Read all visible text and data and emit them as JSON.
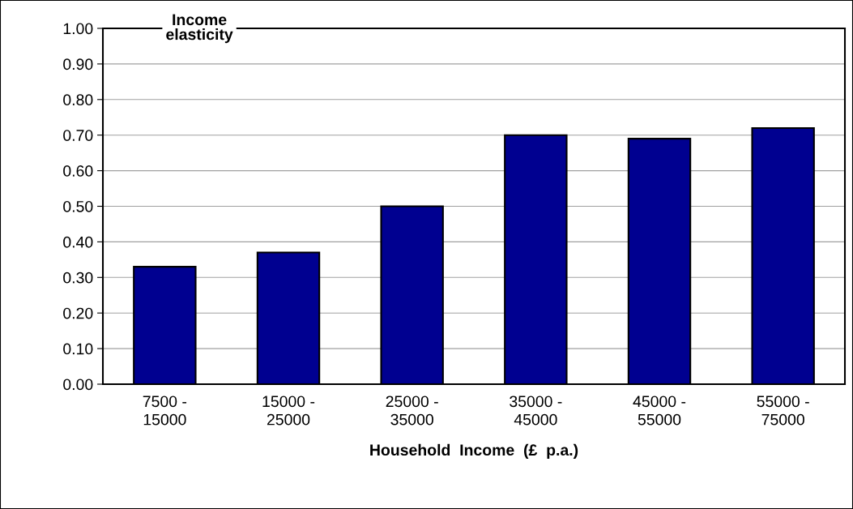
{
  "chart_data": {
    "type": "bar",
    "ylabel": "Income\nelasticity",
    "xlabel": "Household  Income  (£  p.a.)",
    "categories": [
      "7500 -\n15000",
      "15000 -\n25000",
      "25000 -\n35000",
      "35000 -\n45000",
      "45000 -\n55000",
      "55000 -\n75000"
    ],
    "values": [
      0.33,
      0.37,
      0.5,
      0.7,
      0.69,
      0.72
    ],
    "color": "#000090",
    "ylim": [
      0,
      1.0
    ],
    "yticks": [
      {
        "value": 0,
        "label": "0.00"
      },
      {
        "value": 0.1,
        "label": "0.10"
      },
      {
        "value": 0.2,
        "label": "0.20"
      },
      {
        "value": 0.3,
        "label": "0.30"
      },
      {
        "value": 0.4,
        "label": "0.40"
      },
      {
        "value": 0.5,
        "label": "0.50"
      },
      {
        "value": 0.6,
        "label": "0.60"
      },
      {
        "value": 0.7,
        "label": "0.70"
      },
      {
        "value": 0.8,
        "label": "0.80"
      },
      {
        "value": 0.9,
        "label": "0.90"
      },
      {
        "value": 1.0,
        "label": "1.00"
      }
    ],
    "grid": "y"
  }
}
